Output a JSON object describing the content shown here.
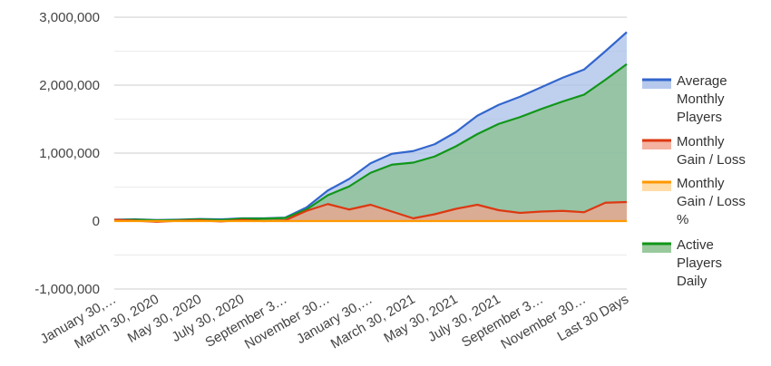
{
  "chart_data": {
    "type": "area",
    "categories": [
      "January 30,…",
      "",
      "March 30, 2020",
      "",
      "May 30, 2020",
      "",
      "July 30, 2020",
      "",
      "September 3…",
      "",
      "November 30…",
      "",
      "January 30,…",
      "",
      "March 30, 2021",
      "",
      "May 30, 2021",
      "",
      "July 30, 2021",
      "",
      "September 3…",
      "",
      "November 30…",
      "",
      "Last 30 Days"
    ],
    "ylim": [
      -1000000,
      3000000
    ],
    "yticks": [
      {
        "value": 3000000,
        "label": "3,000,000"
      },
      {
        "value": 2000000,
        "label": "2,000,000"
      },
      {
        "value": 1000000,
        "label": "1,000,000"
      },
      {
        "value": 0,
        "label": "0"
      },
      {
        "value": -1000000,
        "label": "-1,000,000"
      }
    ],
    "grid": true,
    "legend_position": "right",
    "series": [
      {
        "name": "Average Monthly Players",
        "color": "#3366cc",
        "fill": "#a9c0ea",
        "values": [
          20000,
          25000,
          15000,
          20000,
          30000,
          25000,
          40000,
          40000,
          50000,
          200000,
          450000,
          620000,
          850000,
          990000,
          1030000,
          1130000,
          1310000,
          1550000,
          1710000,
          1830000,
          1970000,
          2110000,
          2230000,
          2500000,
          2780000
        ]
      },
      {
        "name": "Monthly Gain / Loss",
        "color": "#dc3912",
        "fill": "#f2a48f",
        "values": [
          20000,
          5000,
          -10000,
          5000,
          10000,
          -5000,
          15000,
          0,
          10000,
          150000,
          250000,
          170000,
          240000,
          140000,
          40000,
          100000,
          180000,
          240000,
          160000,
          120000,
          140000,
          150000,
          130000,
          270000,
          280000
        ]
      },
      {
        "name": "Monthly Gain / Loss %",
        "color": "#ff9900",
        "fill": "#ffd699",
        "values": [
          0,
          0,
          0,
          0,
          0,
          0,
          0,
          0,
          0,
          0,
          0,
          0,
          0,
          0,
          0,
          0,
          0,
          0,
          0,
          0,
          0,
          0,
          0,
          0,
          0
        ]
      },
      {
        "name": "Active Players Daily",
        "color": "#109618",
        "fill": "#88c08c",
        "values": [
          15000,
          20000,
          10000,
          15000,
          25000,
          15000,
          35000,
          35000,
          45000,
          170000,
          380000,
          510000,
          710000,
          830000,
          860000,
          950000,
          1100000,
          1280000,
          1430000,
          1530000,
          1650000,
          1760000,
          1860000,
          2080000,
          2310000
        ]
      }
    ],
    "legend": [
      {
        "lines": [
          "Average",
          "Monthly",
          "Players"
        ]
      },
      {
        "lines": [
          "Monthly",
          "Gain / Loss"
        ]
      },
      {
        "lines": [
          "Monthly",
          "Gain / Loss",
          "%"
        ]
      },
      {
        "lines": [
          "Active",
          "Players",
          "Daily"
        ]
      }
    ]
  }
}
